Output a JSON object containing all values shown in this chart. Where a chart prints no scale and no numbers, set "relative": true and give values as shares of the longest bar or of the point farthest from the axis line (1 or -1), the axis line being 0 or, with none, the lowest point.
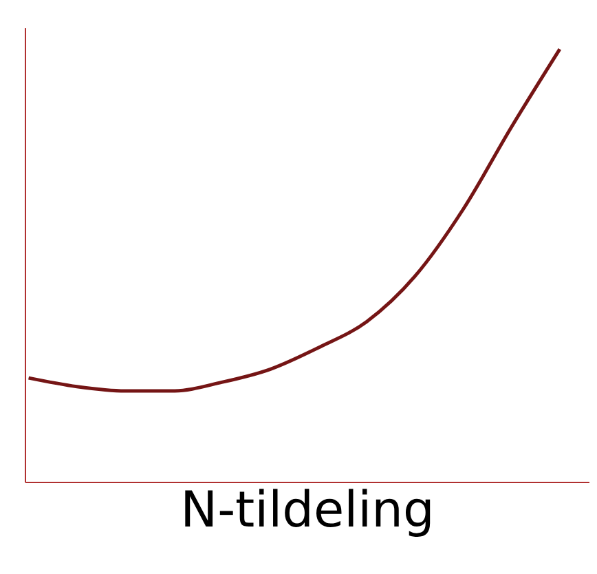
{
  "chart_data": {
    "type": "line",
    "relative": true,
    "xlabel": "N-tildeling",
    "categories": [
      null,
      null,
      null,
      null,
      null,
      null,
      null,
      null,
      null,
      null,
      null,
      null
    ],
    "series": [
      {
        "color": "#751515",
        "values": [
          0.24,
          0.22,
          0.21,
          0.21,
          0.23,
          0.26,
          0.31,
          0.37,
          0.475,
          0.63,
          0.82,
          1.0
        ]
      }
    ],
    "tick_labels": false,
    "grid": false,
    "legend": false,
    "marker": "none",
    "line_style": "solid"
  }
}
